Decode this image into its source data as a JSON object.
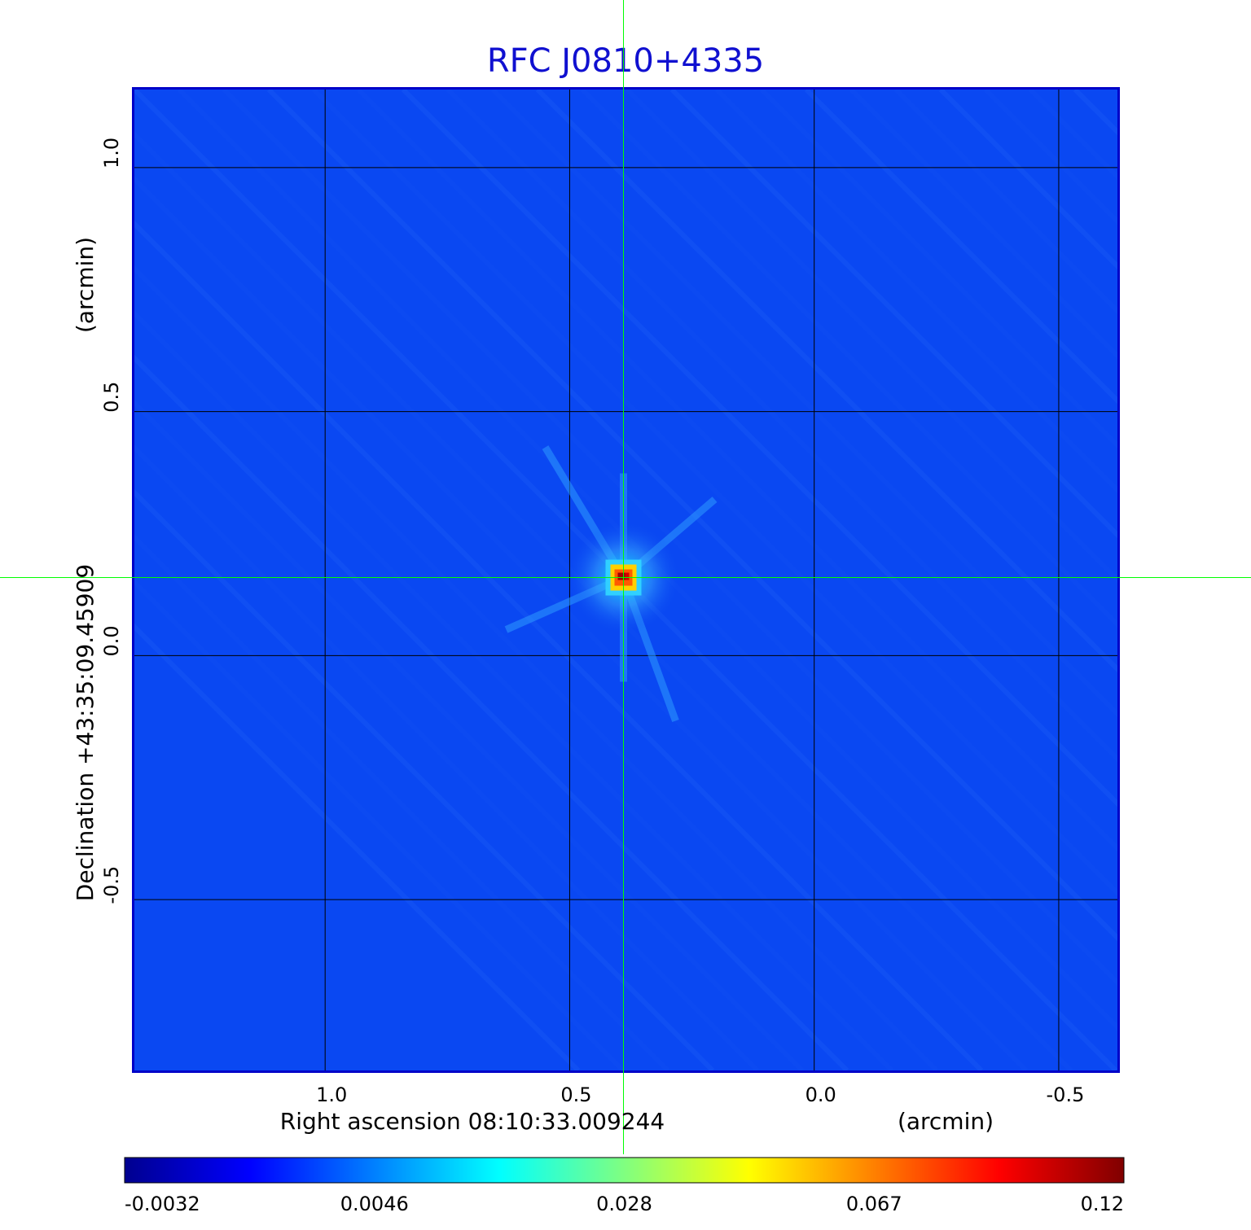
{
  "chart_data": {
    "type": "heatmap",
    "title": "RFC J0810+4335",
    "title_color": "#1010d0",
    "frame_color": "#0000c8",
    "background_color": "#0a48f2",
    "grid_color": "#000000",
    "crosshair_color": "#00ff00",
    "xlabel": "Right ascension  08:10:33.009244",
    "xlabel_unit": "(arcmin)",
    "ylabel": "Declination  +43:35:09.45909",
    "ylabel_unit": "(arcmin)",
    "x_ticks": [
      "1.0",
      "0.5",
      "0.0",
      "-0.5"
    ],
    "x_tick_values": [
      1.0,
      0.5,
      0.0,
      -0.5
    ],
    "y_ticks": [
      "1.0",
      "0.5",
      "0.0",
      "-0.5"
    ],
    "y_tick_values": [
      1.0,
      0.5,
      0.0,
      -0.5
    ],
    "xlim": [
      1.39,
      -0.62
    ],
    "ylim": [
      -0.85,
      1.16
    ],
    "source_position": [
      0.39,
      0.16
    ],
    "peak_value": 0.12,
    "colorbar": {
      "ticks": [
        "-0.0032",
        "0.0046",
        "0.028",
        "0.067",
        "0.12"
      ],
      "colormap": "jet",
      "colors": [
        "#00008f",
        "#0000ff",
        "#0080ff",
        "#00ffff",
        "#80ff80",
        "#ffff00",
        "#ff8000",
        "#ff0000",
        "#800000"
      ]
    },
    "grid": true
  }
}
